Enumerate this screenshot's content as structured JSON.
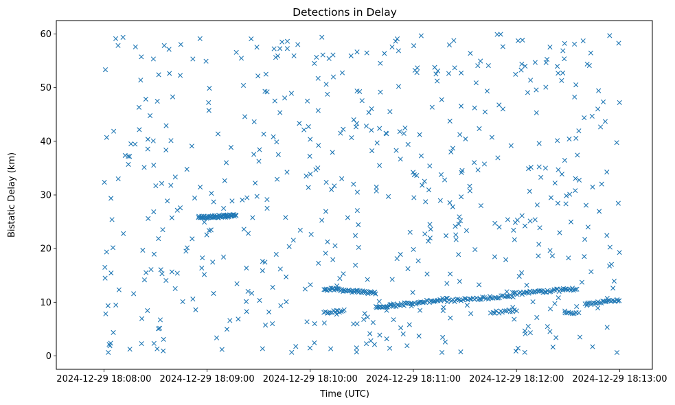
{
  "chart_data": {
    "type": "scatter",
    "title": "Detections in Delay",
    "xlabel": "Time (UTC)",
    "ylabel": "Bistatic Delay (km)",
    "marker": "x",
    "color": "#1f77b4",
    "grid": false,
    "x_ticks": [
      "2024-12-29 18:08:00",
      "2024-12-29 18:09:00",
      "2024-12-29 18:10:00",
      "2024-12-29 18:11:00",
      "2024-12-29 18:12:00",
      "2024-12-29 18:13:00"
    ],
    "x_tick_seconds": [
      0,
      60,
      120,
      180,
      240,
      300
    ],
    "xlim_seconds": [
      -27.7,
      319
    ],
    "y_ticks": [
      0,
      10,
      20,
      30,
      40,
      50,
      60
    ],
    "ylim": [
      -2.5,
      62.5
    ],
    "series": [
      {
        "seed": 20241229,
        "random_detections": {
          "count": 560,
          "t_range": [
            0,
            300
          ],
          "delay_range": [
            0.5,
            60
          ]
        },
        "tracks": [
          {
            "t_start": 55,
            "t_end": 77,
            "delay_start": 25.8,
            "delay_end": 26.2,
            "points": 55
          },
          {
            "t_start": 128,
            "t_end": 158,
            "delay_start": 12.5,
            "delay_end": 11.7,
            "points": 45
          },
          {
            "t_start": 128,
            "t_end": 140,
            "delay_start": 8.0,
            "delay_end": 8.4,
            "points": 14
          },
          {
            "t_start": 158,
            "t_end": 200,
            "delay_start": 9.0,
            "delay_end": 10.6,
            "points": 55
          },
          {
            "t_start": 200,
            "t_end": 238,
            "delay_start": 10.2,
            "delay_end": 11.2,
            "points": 40
          },
          {
            "t_start": 238,
            "t_end": 275,
            "delay_start": 11.6,
            "delay_end": 12.5,
            "points": 45
          },
          {
            "t_start": 280,
            "t_end": 300,
            "delay_start": 9.6,
            "delay_end": 10.4,
            "points": 25
          },
          {
            "t_start": 225,
            "t_end": 240,
            "delay_start": 8.0,
            "delay_end": 8.6,
            "points": 14
          },
          {
            "t_start": 268,
            "t_end": 276,
            "delay_start": 7.8,
            "delay_end": 8.2,
            "points": 8
          }
        ]
      }
    ]
  }
}
